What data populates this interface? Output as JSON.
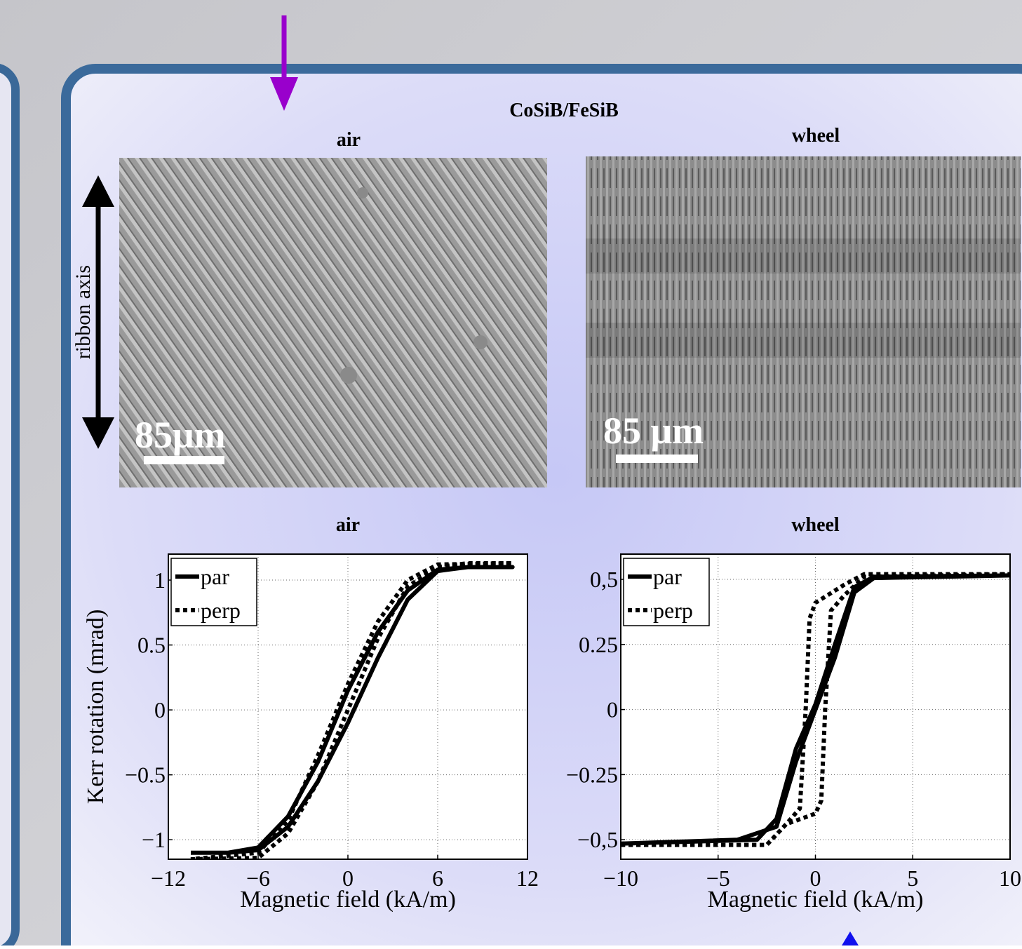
{
  "panel": {
    "title": "CoSiB/FeSiB",
    "axis_label": "ribbon axis",
    "images": [
      {
        "title": "air",
        "scale_bar": "85μm"
      },
      {
        "title": "wheel",
        "scale_bar": "85 μm"
      }
    ]
  },
  "chart_data": [
    {
      "type": "line",
      "title": "air",
      "x_label": "Magnetic field (kA/m)",
      "y_label": "Kerr rotation (mrad)",
      "xlim": [
        -12,
        12
      ],
      "ylim": [
        -1.15,
        1.2
      ],
      "xticks": [
        {
          "value": -12,
          "label": "−12"
        },
        {
          "value": -6,
          "label": "−6"
        },
        0,
        6,
        12
      ],
      "yticks": [
        {
          "value": -1,
          "label": "−1"
        },
        {
          "value": -0.5,
          "label": "−0.5"
        },
        0,
        0.5,
        1
      ],
      "grid": true,
      "legend": "upper left",
      "series": [
        {
          "name": "par",
          "color": "#000000",
          "style": "solid",
          "x": [
            -10.5,
            -8,
            -6,
            -4,
            -2,
            0,
            2,
            4,
            6,
            8,
            11,
            8,
            6,
            4,
            2,
            0,
            -2,
            -4,
            -6,
            -8,
            -10.5
          ],
          "values": [
            -1.1,
            -1.1,
            -1.08,
            -0.9,
            -0.55,
            -0.1,
            0.4,
            0.85,
            1.07,
            1.1,
            1.1,
            1.1,
            1.08,
            0.92,
            0.6,
            0.15,
            -0.4,
            -0.82,
            -1.06,
            -1.1,
            -1.1
          ]
        },
        {
          "name": "perp",
          "color": "#000000",
          "style": "dotted",
          "x": [
            -10.5,
            -6,
            -4,
            -2,
            0,
            2,
            4,
            6,
            8,
            11,
            6,
            4,
            2,
            0,
            -2,
            -4,
            -6,
            -10.5
          ],
          "values": [
            -1.15,
            -1.14,
            -0.95,
            -0.55,
            0.0,
            0.55,
            0.95,
            1.1,
            1.13,
            1.13,
            1.12,
            1.0,
            0.68,
            0.2,
            -0.35,
            -0.85,
            -1.1,
            -1.15
          ]
        }
      ]
    },
    {
      "type": "line",
      "title": "wheel",
      "x_label": "Magnetic field (kA/m)",
      "xlim": [
        -10,
        10
      ],
      "ylim": [
        -0.575,
        0.597
      ],
      "xticks": [
        {
          "value": -10,
          "label": "−10"
        },
        {
          "value": -5,
          "label": "−5"
        },
        0,
        5,
        10
      ],
      "yticks": [
        {
          "value": -0.5,
          "label": "−0,5"
        },
        {
          "value": -0.25,
          "label": "−0.25"
        },
        0,
        0.25,
        {
          "value": 0.5,
          "label": "0,5"
        }
      ],
      "grid": true,
      "legend": "upper left",
      "series": [
        {
          "name": "par",
          "color": "#000000",
          "style": "solid",
          "x": [
            -10,
            -4,
            -2,
            -1,
            0,
            1,
            2,
            3,
            10,
            3,
            2,
            1,
            0,
            -1,
            -2,
            -3,
            -10
          ],
          "values": [
            -0.515,
            -0.5,
            -0.45,
            -0.2,
            0.0,
            0.2,
            0.45,
            0.505,
            0.515,
            0.51,
            0.47,
            0.25,
            0.02,
            -0.15,
            -0.42,
            -0.5,
            -0.515
          ]
        },
        {
          "name": "perp",
          "color": "#000000",
          "style": "dotted",
          "x": [
            -10,
            -2.5,
            -1.5,
            0,
            0.3,
            0.5,
            0.8,
            1.5,
            2.5,
            10,
            2.5,
            1.5,
            0,
            -0.3,
            -0.5,
            -0.8,
            -1.5,
            -2.5,
            -10
          ],
          "values": [
            -0.52,
            -0.52,
            -0.44,
            -0.4,
            -0.35,
            0.0,
            0.38,
            0.44,
            0.51,
            0.52,
            0.52,
            0.48,
            0.41,
            0.35,
            0.0,
            -0.38,
            -0.44,
            -0.52,
            -0.52
          ]
        }
      ]
    }
  ]
}
